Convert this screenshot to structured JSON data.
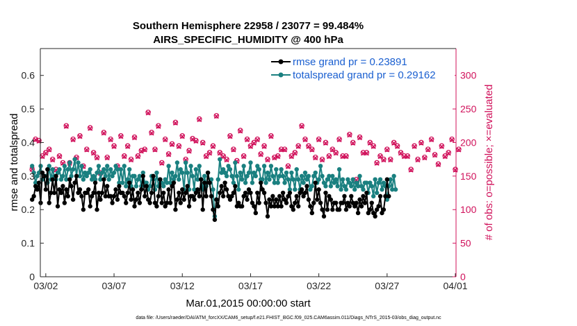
{
  "chart_data": {
    "type": "line",
    "title_line1": "Southern Hemisphere 22958 / 23077 = 99.484%",
    "title_line2": "AIRS_SPECIFIC_HUMIDITY @ 400 hPa",
    "xlabel": "Mar.01,2015 00:00:00 start",
    "ylabel_left": "rmse and totalspread",
    "ylabel_right": "# of obs: o=possible; ×=evaluated",
    "footnote": "data file: /Users/raeder/DAI/ATM_forcXX/CAM6_setup/f.e21.FHIST_BGC.f09_025.CAM6assim.011/Diags_NTrS_2015-03/obs_diag_output.nc",
    "x_range_days": [
      0.6,
      31.05
    ],
    "ylim_left": [
      0,
      0.68
    ],
    "ylim_right": [
      0,
      340
    ],
    "x_ticks": [
      {
        "label": "03/02",
        "day": 1
      },
      {
        "label": "03/07",
        "day": 6
      },
      {
        "label": "03/12",
        "day": 11
      },
      {
        "label": "03/17",
        "day": 16
      },
      {
        "label": "03/22",
        "day": 21
      },
      {
        "label": "03/27",
        "day": 26
      },
      {
        "label": "04/01",
        "day": 31
      }
    ],
    "y_ticks_left": [
      "0",
      "0.1",
      "0.2",
      "0.3",
      "0.4",
      "0.5",
      "0.6"
    ],
    "y_ticks_right": [
      "0",
      "50",
      "100",
      "150",
      "200",
      "250",
      "300"
    ],
    "series": [
      {
        "name": "rmse grand pr = 0.23891",
        "color": "#000000",
        "x0": 0.0,
        "dx": 0.125,
        "values": [
          0.23,
          0.24,
          0.27,
          0.26,
          0.28,
          0.22,
          0.31,
          0.3,
          0.26,
          0.32,
          0.22,
          0.25,
          0.29,
          0.25,
          0.3,
          0.21,
          0.26,
          0.25,
          0.27,
          0.22,
          0.26,
          0.24,
          0.29,
          0.27,
          0.23,
          0.28,
          0.3,
          0.25,
          0.26,
          0.24,
          0.2,
          0.25,
          0.25,
          0.26,
          0.21,
          0.24,
          0.25,
          0.28,
          0.2,
          0.25,
          0.23,
          0.25,
          0.29,
          0.24,
          0.27,
          0.24,
          0.24,
          0.22,
          0.24,
          0.26,
          0.23,
          0.27,
          0.25,
          0.25,
          0.24,
          0.22,
          0.25,
          0.28,
          0.23,
          0.26,
          0.21,
          0.23,
          0.25,
          0.22,
          0.26,
          0.3,
          0.24,
          0.27,
          0.23,
          0.22,
          0.25,
          0.3,
          0.22,
          0.21,
          0.24,
          0.29,
          0.22,
          0.25,
          0.21,
          0.22,
          0.26,
          0.22,
          0.27,
          0.28,
          0.2,
          0.23,
          0.25,
          0.22,
          0.26,
          0.23,
          0.25,
          0.27,
          0.21,
          0.24,
          0.24,
          0.23,
          0.25,
          0.26,
          0.24,
          0.29,
          0.2,
          0.28,
          0.24,
          0.31,
          0.28,
          0.24,
          0.2,
          0.17,
          0.23,
          0.21,
          0.25,
          0.27,
          0.24,
          0.28,
          0.26,
          0.24,
          0.23,
          0.24,
          0.25,
          0.27,
          0.21,
          0.22,
          0.21,
          0.21,
          0.24,
          0.25,
          0.23,
          0.26,
          0.25,
          0.22,
          0.21,
          0.19,
          0.25,
          0.22,
          0.28,
          0.26,
          0.25,
          0.22,
          0.18,
          0.23,
          0.21,
          0.24,
          0.21,
          0.23,
          0.21,
          0.24,
          0.21,
          0.25,
          0.23,
          0.22,
          0.24,
          0.25,
          0.21,
          0.2,
          0.22,
          0.24,
          0.21,
          0.25,
          0.26,
          0.24,
          0.25,
          0.27,
          0.23,
          0.21,
          0.19,
          0.22,
          0.28,
          0.23,
          0.26,
          0.22,
          0.2,
          0.18,
          0.25,
          0.2,
          0.24,
          0.23,
          0.2,
          0.22,
          0.22,
          0.2,
          0.2,
          0.22,
          0.22,
          0.24,
          0.2,
          0.22,
          0.21,
          0.24,
          0.22,
          0.21,
          0.22,
          0.19,
          0.23,
          0.21,
          0.24,
          0.22,
          0.25,
          0.19,
          0.2,
          0.22,
          0.19,
          0.18,
          0.2,
          0.21,
          0.24,
          0.19,
          0.2,
          0.24,
          0.29,
          0.24
        ]
      },
      {
        "name": "totalspread grand pr = 0.29162",
        "color": "#1a8080",
        "x0": 0.0,
        "dx": 0.125,
        "values": [
          0.33,
          0.31,
          0.28,
          0.3,
          0.31,
          0.33,
          0.29,
          0.3,
          0.3,
          0.28,
          0.33,
          0.29,
          0.32,
          0.3,
          0.29,
          0.31,
          0.32,
          0.29,
          0.3,
          0.33,
          0.29,
          0.32,
          0.34,
          0.3,
          0.32,
          0.35,
          0.3,
          0.34,
          0.3,
          0.33,
          0.29,
          0.31,
          0.3,
          0.31,
          0.32,
          0.29,
          0.3,
          0.29,
          0.31,
          0.33,
          0.29,
          0.31,
          0.32,
          0.3,
          0.33,
          0.29,
          0.32,
          0.3,
          0.31,
          0.33,
          0.32,
          0.28,
          0.32,
          0.28,
          0.33,
          0.27,
          0.29,
          0.32,
          0.27,
          0.3,
          0.3,
          0.27,
          0.29,
          0.3,
          0.27,
          0.31,
          0.28,
          0.28,
          0.26,
          0.27,
          0.3,
          0.29,
          0.26,
          0.31,
          0.27,
          0.29,
          0.28,
          0.27,
          0.29,
          0.28,
          0.33,
          0.28,
          0.31,
          0.29,
          0.3,
          0.34,
          0.29,
          0.32,
          0.31,
          0.26,
          0.34,
          0.31,
          0.26,
          0.33,
          0.3,
          0.26,
          0.32,
          0.29,
          0.33,
          0.29,
          0.26,
          0.3,
          0.27,
          0.31,
          0.28,
          0.29,
          0.26,
          0.18,
          0.23,
          0.29,
          0.35,
          0.31,
          0.32,
          0.31,
          0.3,
          0.33,
          0.32,
          0.3,
          0.28,
          0.34,
          0.3,
          0.26,
          0.31,
          0.29,
          0.33,
          0.28,
          0.3,
          0.31,
          0.34,
          0.28,
          0.31,
          0.3,
          0.33,
          0.32,
          0.29,
          0.29,
          0.33,
          0.28,
          0.31,
          0.29,
          0.33,
          0.3,
          0.28,
          0.32,
          0.28,
          0.3,
          0.32,
          0.3,
          0.28,
          0.31,
          0.29,
          0.26,
          0.31,
          0.29,
          0.26,
          0.32,
          0.29,
          0.26,
          0.3,
          0.28,
          0.31,
          0.29,
          0.3,
          0.26,
          0.27,
          0.3,
          0.31,
          0.28,
          0.29,
          0.33,
          0.3,
          0.28,
          0.27,
          0.29,
          0.3,
          0.27,
          0.3,
          0.28,
          0.29,
          0.27,
          0.32,
          0.26,
          0.29,
          0.27,
          0.26,
          0.29,
          0.28,
          0.27,
          0.29,
          0.26,
          0.28,
          0.27,
          0.3,
          0.27,
          0.26,
          0.28,
          0.28,
          0.25,
          0.28,
          0.27,
          0.24,
          0.29,
          0.25,
          0.28,
          0.29,
          0.26,
          0.28,
          0.27,
          0.23,
          0.27,
          0.29,
          0.26,
          0.3,
          0.26
        ]
      }
    ],
    "obs_counts": {
      "color": "#d0105a",
      "x0": 0.0,
      "dx": 0.25,
      "possible": [
        160,
        205,
        203,
        180,
        185,
        190,
        175,
        160,
        180,
        170,
        225,
        170,
        205,
        178,
        210,
        165,
        190,
        222,
        185,
        178,
        155,
        215,
        178,
        205,
        195,
        165,
        210,
        180,
        195,
        175,
        208,
        180,
        188,
        190,
        245,
        215,
        190,
        225,
        170,
        205,
        183,
        198,
        230,
        195,
        210,
        175,
        188,
        206,
        203,
        235,
        200,
        180,
        185,
        195,
        240,
        185,
        180,
        175,
        210,
        190,
        173,
        218,
        180,
        205,
        195,
        200,
        205,
        183,
        195,
        175,
        210,
        178,
        180,
        190,
        190,
        165,
        180,
        185,
        195,
        225,
        205,
        195,
        190,
        178,
        205,
        175,
        200,
        180,
        190,
        185,
        205,
        180,
        180,
        212,
        200,
        145,
        208,
        185,
        185,
        200,
        195,
        170,
        180,
        175,
        190,
        175,
        200,
        195,
        185,
        180,
        180,
        160,
        195,
        175,
        200,
        178,
        190,
        205,
        182,
        168,
        195,
        180,
        185,
        205,
        160,
        190
      ],
      "evaluated": [
        160,
        204,
        202,
        179,
        184,
        189,
        174,
        159,
        179,
        169,
        224,
        169,
        204,
        177,
        209,
        164,
        189,
        221,
        184,
        177,
        154,
        214,
        177,
        204,
        194,
        164,
        209,
        179,
        194,
        174,
        207,
        179,
        187,
        189,
        244,
        214,
        189,
        224,
        169,
        204,
        182,
        197,
        229,
        194,
        209,
        174,
        187,
        205,
        202,
        234,
        199,
        179,
        184,
        194,
        239,
        184,
        179,
        174,
        209,
        189,
        172,
        217,
        179,
        204,
        194,
        199,
        204,
        182,
        194,
        174,
        209,
        177,
        179,
        189,
        189,
        164,
        179,
        184,
        194,
        224,
        204,
        194,
        189,
        177,
        204,
        174,
        199,
        179,
        189,
        184,
        204,
        179,
        179,
        211,
        199,
        144,
        207,
        184,
        184,
        199,
        194,
        169,
        179,
        174,
        189,
        174,
        199,
        194,
        184,
        179,
        179,
        159,
        194,
        174,
        199,
        177,
        189,
        204,
        181,
        167,
        194,
        179,
        184,
        204,
        159,
        189
      ]
    }
  }
}
